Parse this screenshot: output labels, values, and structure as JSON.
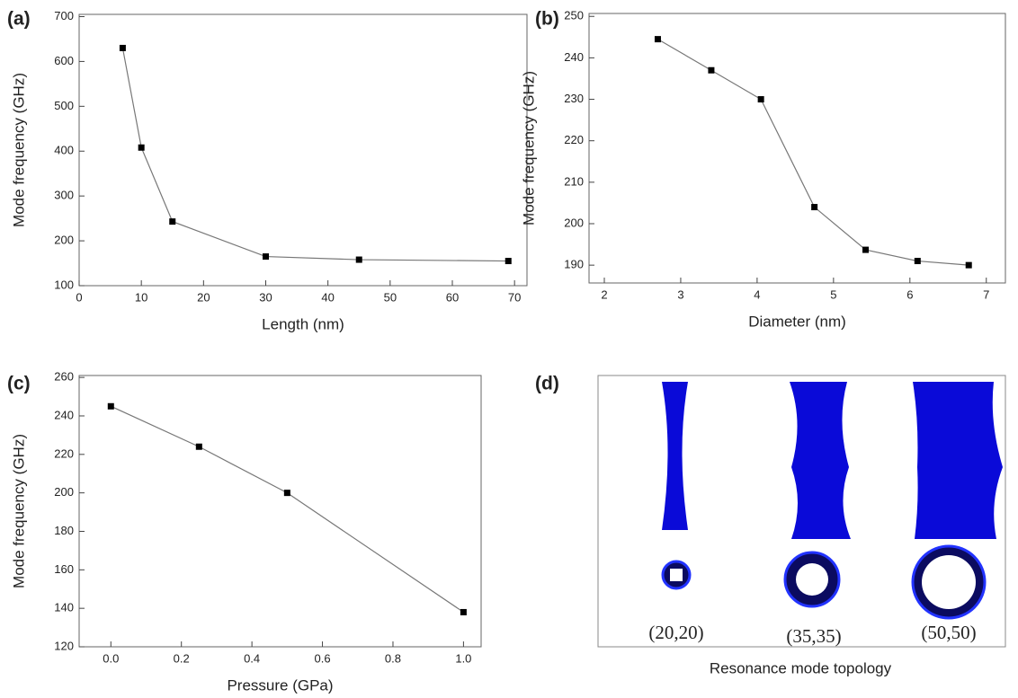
{
  "chart_data": [
    {
      "type": "line",
      "label": "(a)",
      "xlabel": "Length (nm)",
      "ylabel": "Mode frequency (GHz)",
      "x": [
        7,
        10,
        15,
        30,
        45,
        69
      ],
      "values": [
        630,
        408,
        243,
        165,
        158,
        155
      ],
      "color": "#000000",
      "xlim": [
        0,
        72
      ],
      "xticks": [
        0,
        10,
        20,
        30,
        40,
        50,
        60,
        70
      ],
      "ylim": [
        100,
        705
      ],
      "yticks": [
        100,
        200,
        300,
        400,
        500,
        600,
        700
      ]
    },
    {
      "type": "line",
      "label": "(b)",
      "xlabel": "Diameter (nm)",
      "ylabel": "Mode frequency (GHz)",
      "x": [
        2.7,
        3.4,
        4.05,
        4.75,
        5.42,
        6.1,
        6.77
      ],
      "values": [
        244.5,
        237,
        230,
        204,
        193.7,
        191,
        190
      ],
      "color": "#000000",
      "xlim": [
        1.8,
        7.25
      ],
      "xticks": [
        2,
        3,
        4,
        5,
        6,
        7
      ],
      "ylim": [
        185.7,
        250.7
      ],
      "yticks": [
        190,
        200,
        210,
        220,
        230,
        240,
        250
      ]
    },
    {
      "type": "line",
      "label": "(c)",
      "xlabel": "Pressure (GPa)",
      "ylabel": "Mode frequency (GHz)",
      "x": [
        0,
        0.25,
        0.5,
        1.0
      ],
      "values": [
        245,
        224,
        200,
        138
      ],
      "color": "#000000",
      "xlim": [
        -0.09,
        1.05
      ],
      "xticks": [
        {
          "value": 0,
          "label": "0.0"
        },
        0.2,
        0.4,
        0.6,
        0.8,
        {
          "value": 1,
          "label": "1.0"
        }
      ],
      "ylim": [
        120,
        261
      ],
      "yticks": [
        120,
        140,
        160,
        180,
        200,
        220,
        240,
        260
      ]
    }
  ],
  "panel_d": {
    "label": "(d)",
    "structures": [
      "(20,20)",
      "(35,35)",
      "(50,50)"
    ],
    "caption": "Resonance mode topology"
  }
}
